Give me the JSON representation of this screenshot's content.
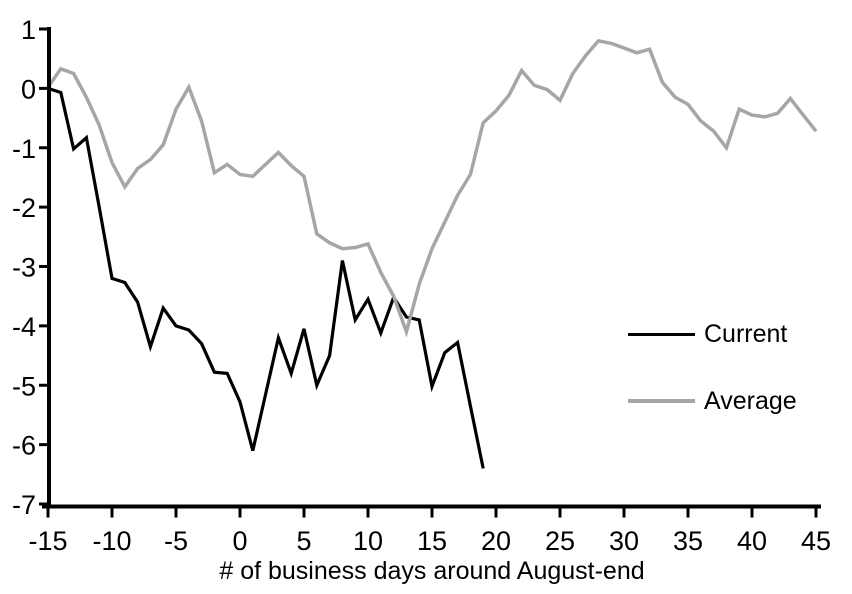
{
  "chart_data": {
    "type": "line",
    "title": "",
    "xlabel": "# of business days around August-end",
    "ylabel": "",
    "xlim": [
      -15,
      45
    ],
    "ylim": [
      -7,
      1
    ],
    "x_ticks": [
      -15,
      -10,
      -5,
      0,
      5,
      10,
      15,
      20,
      25,
      30,
      35,
      40,
      45
    ],
    "y_ticks": [
      1,
      0,
      -1,
      -2,
      -3,
      -4,
      -5,
      -6,
      -7
    ],
    "grid": false,
    "legend_position": "middle-right",
    "axis_color": "#000000",
    "series": [
      {
        "name": "Current",
        "color": "#000000",
        "line_width": 3.2,
        "x": [
          -15,
          -14,
          -13,
          -12,
          -11,
          -10,
          -9,
          -8,
          -7,
          -6,
          -5,
          -4,
          -3,
          -2,
          -1,
          0,
          1,
          2,
          3,
          4,
          5,
          6,
          7,
          8,
          9,
          10,
          11,
          12,
          13,
          14,
          15,
          16,
          17,
          18,
          19
        ],
        "values": [
          0.0,
          -0.07,
          -1.02,
          -0.83,
          -2.0,
          -3.2,
          -3.27,
          -3.6,
          -4.35,
          -3.7,
          -4.0,
          -4.07,
          -4.3,
          -4.78,
          -4.8,
          -5.28,
          -6.1,
          -5.15,
          -4.2,
          -4.8,
          -4.05,
          -5.0,
          -4.5,
          -2.9,
          -3.9,
          -3.55,
          -4.12,
          -3.52,
          -3.85,
          -3.9,
          -5.02,
          -4.45,
          -4.28,
          -5.35,
          -6.4
        ]
      },
      {
        "name": "Average",
        "color": "#a6a6a6",
        "line_width": 3.5,
        "x": [
          -15,
          -14,
          -13,
          -12,
          -11,
          -10,
          -9,
          -8,
          -7,
          -6,
          -5,
          -4,
          -3,
          -2,
          -1,
          0,
          1,
          2,
          3,
          4,
          5,
          6,
          7,
          8,
          9,
          10,
          11,
          12,
          13,
          14,
          15,
          16,
          17,
          18,
          19,
          20,
          21,
          22,
          23,
          24,
          25,
          26,
          27,
          28,
          29,
          30,
          31,
          32,
          33,
          34,
          35,
          36,
          37,
          38,
          39,
          40,
          41,
          42,
          43,
          44,
          45
        ],
        "values": [
          0.02,
          0.33,
          0.25,
          -0.15,
          -0.62,
          -1.25,
          -1.66,
          -1.35,
          -1.2,
          -0.95,
          -0.35,
          0.02,
          -0.55,
          -1.42,
          -1.28,
          -1.45,
          -1.48,
          -1.28,
          -1.08,
          -1.3,
          -1.48,
          -2.45,
          -2.6,
          -2.7,
          -2.68,
          -2.62,
          -3.1,
          -3.5,
          -4.1,
          -3.3,
          -2.7,
          -2.25,
          -1.8,
          -1.45,
          -0.58,
          -0.38,
          -0.12,
          0.3,
          0.05,
          -0.02,
          -0.2,
          0.25,
          0.55,
          0.8,
          0.76,
          0.68,
          0.6,
          0.66,
          0.1,
          -0.15,
          -0.27,
          -0.55,
          -0.72,
          -1.0,
          -0.35,
          -0.45,
          -0.48,
          -0.42,
          -0.17,
          -0.45,
          -0.72
        ]
      }
    ]
  }
}
